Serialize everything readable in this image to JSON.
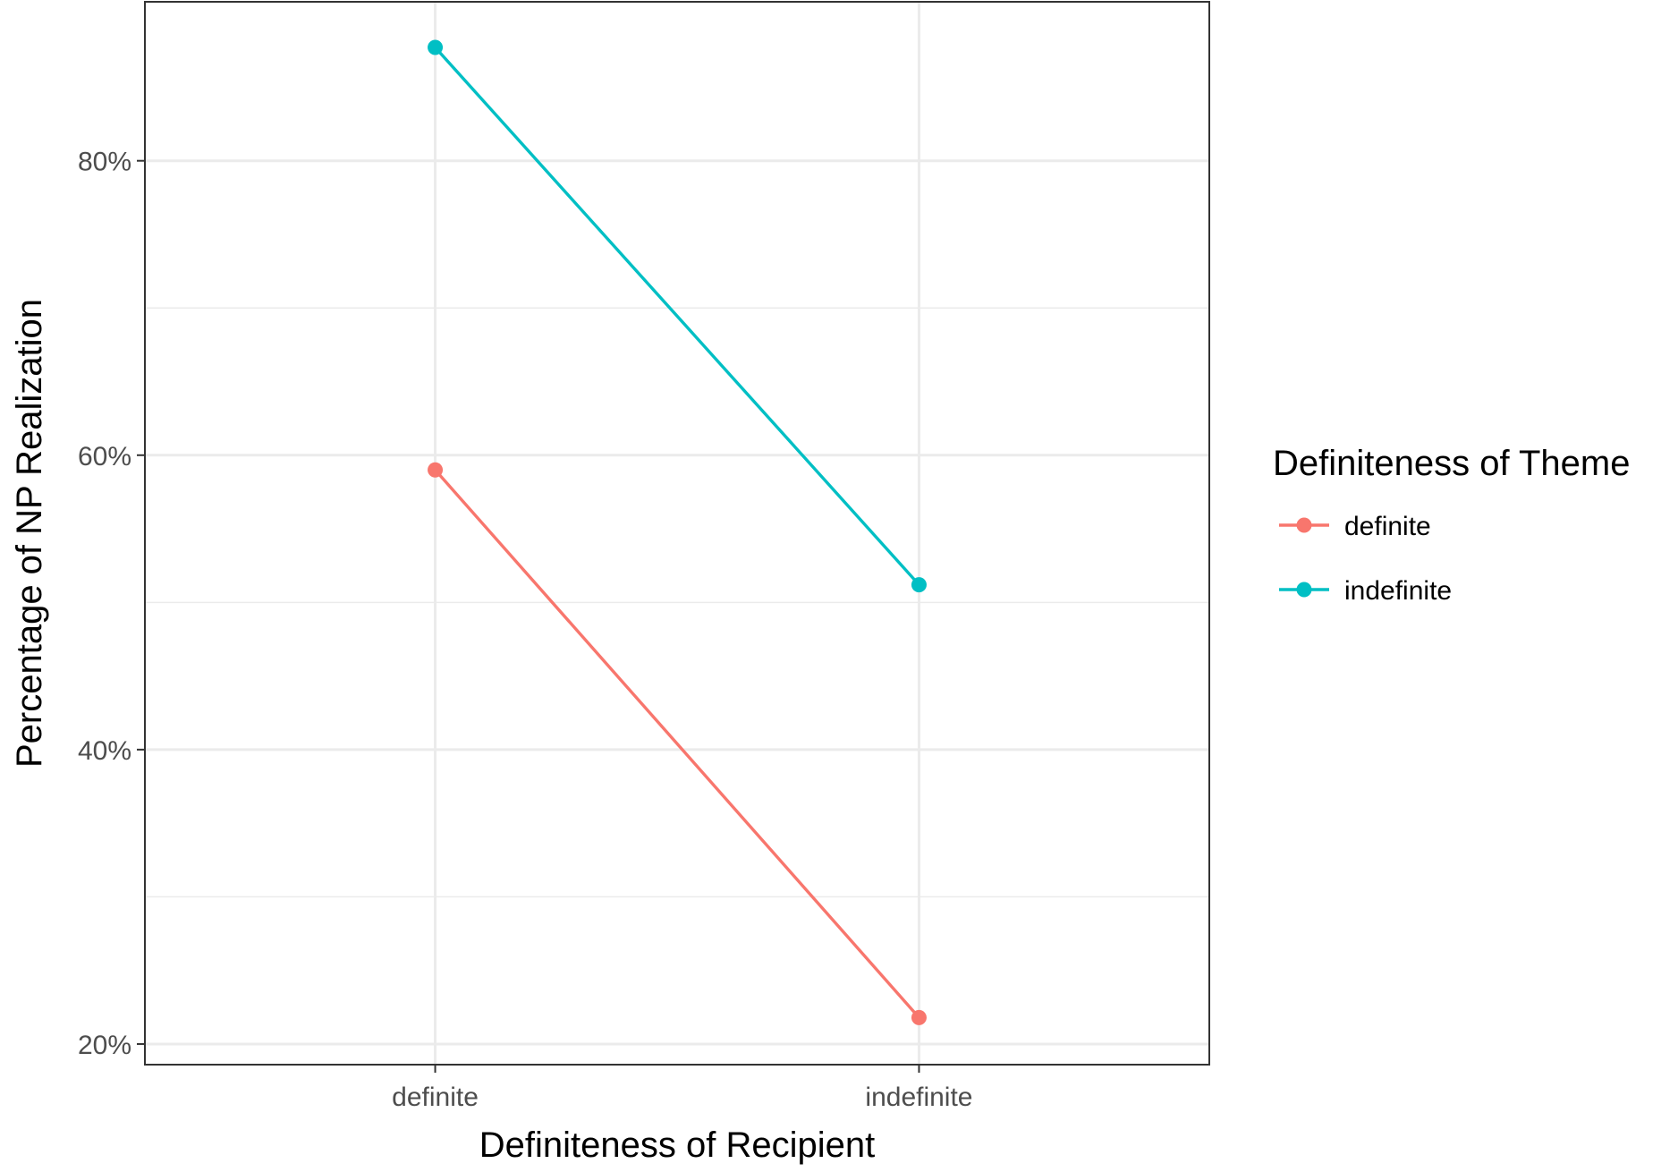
{
  "chart_data": {
    "type": "line",
    "title": "",
    "xlabel": "Definiteness of Recipient",
    "ylabel": "Percentage of NP Realization",
    "categories": [
      "definite",
      "indefinite"
    ],
    "y_ticks": [
      20,
      40,
      60,
      80
    ],
    "y_tick_labels": [
      "20%",
      "40%",
      "60%",
      "80%"
    ],
    "ylim": [
      18.6,
      90.8
    ],
    "grid": true,
    "legend": {
      "title": "Definiteness of Theme",
      "placement": "right"
    },
    "series": [
      {
        "name": "definite",
        "color": "#F8766D",
        "values": [
          59.0,
          21.8
        ]
      },
      {
        "name": "indefinite",
        "color": "#00BFC4",
        "values": [
          87.7,
          51.2
        ]
      }
    ]
  }
}
